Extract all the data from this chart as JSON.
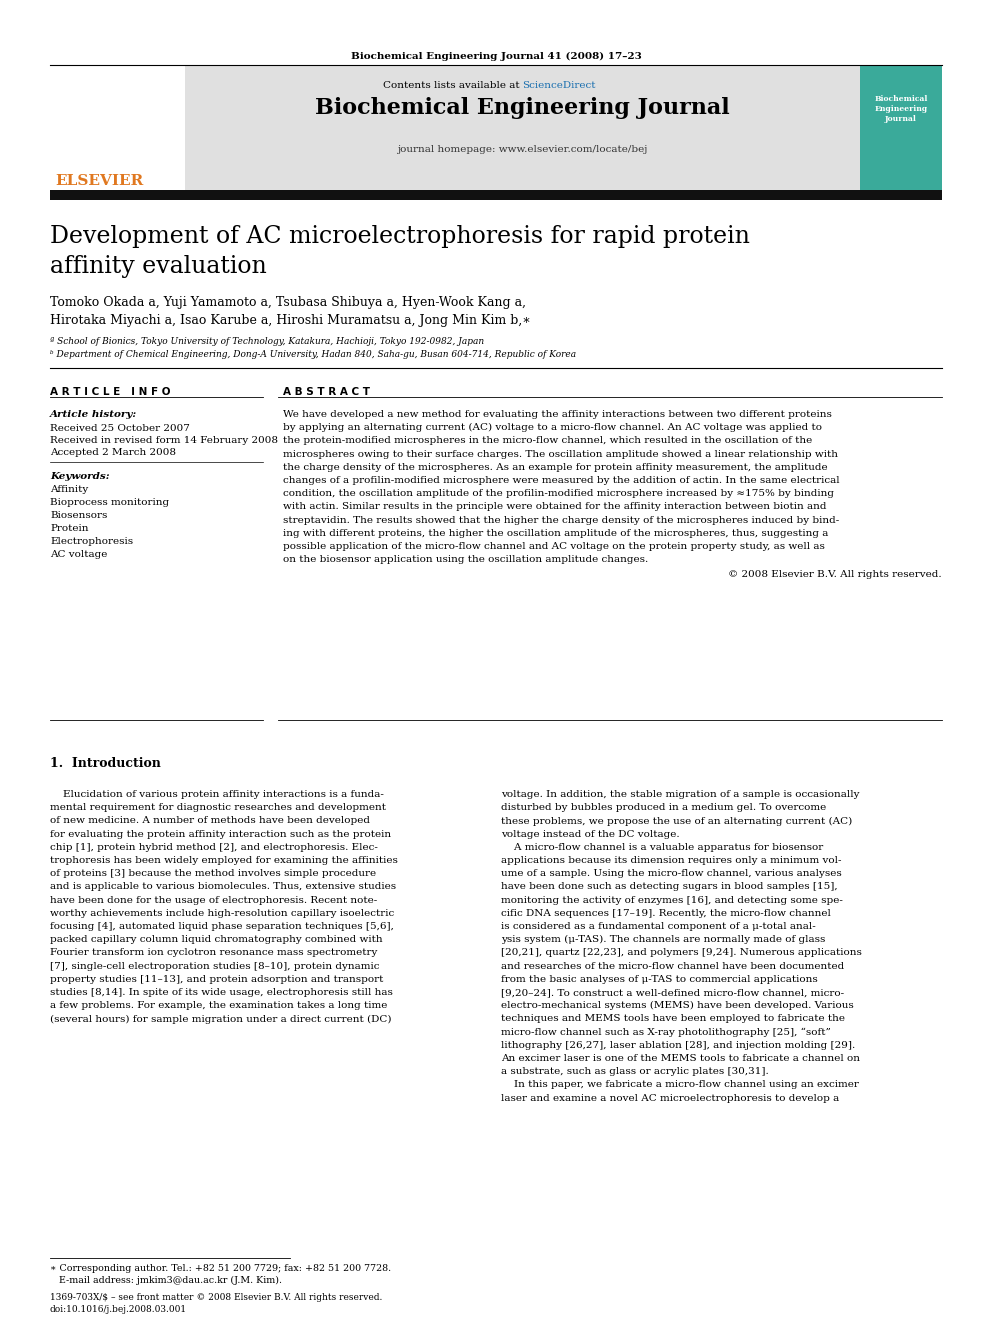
{
  "page_background": "#ffffff",
  "top_journal_ref": "Biochemical Engineering Journal 41 (2008) 17–23",
  "sciencedirect_color": "#1a6faf",
  "journal_title": "Biochemical Engineering Journal",
  "journal_homepage": "journal homepage: www.elsevier.com/locate/bej",
  "header_bg": "#e0e0e0",
  "elsevier_color": "#e07820",
  "article_title_line1": "Development of AC microelectrophoresis for rapid protein",
  "article_title_line2": "affinity evaluation",
  "authors_line1": "Tomoko Okada a, Yuji Yamamoto a, Tsubasa Shibuya a, Hyen-Wook Kang a,",
  "authors_line2": "Hirotaka Miyachi a, Isao Karube a, Hiroshi Muramatsu a, Jong Min Kim b,∗",
  "affil_a": "ª School of Bionics, Tokyo University of Technology, Katakura, Hachioji, Tokyo 192-0982, Japan",
  "affil_b": "ᵇ Department of Chemical Engineering, Dong-A University, Hadan 840, Saha-gu, Busan 604-714, Republic of Korea",
  "article_info_header": "A R T I C L E   I N F O",
  "abstract_header": "A B S T R A C T",
  "article_history_header": "Article history:",
  "received1": "Received 25 October 2007",
  "received2": "Received in revised form 14 February 2008",
  "accepted": "Accepted 2 March 2008",
  "keywords_header": "Keywords:",
  "keywords": [
    "Affinity",
    "Bioprocess monitoring",
    "Biosensors",
    "Protein",
    "Electrophoresis",
    "AC voltage"
  ],
  "abstract_lines": [
    "We have developed a new method for evaluating the affinity interactions between two different proteins",
    "by applying an alternating current (AC) voltage to a micro-flow channel. An AC voltage was applied to",
    "the protein-modified microspheres in the micro-flow channel, which resulted in the oscillation of the",
    "microspheres owing to their surface charges. The oscillation amplitude showed a linear relationship with",
    "the charge density of the microspheres. As an example for protein affinity measurement, the amplitude",
    "changes of a profilin-modified microsphere were measured by the addition of actin. In the same electrical",
    "condition, the oscillation amplitude of the profilin-modified microsphere increased by ≈175% by binding",
    "with actin. Similar results in the principle were obtained for the affinity interaction between biotin and",
    "streptavidin. The results showed that the higher the charge density of the microspheres induced by bind-",
    "ing with different proteins, the higher the oscillation amplitude of the microspheres, thus, suggesting a",
    "possible application of the micro-flow channel and AC voltage on the protein property study, as well as",
    "on the biosensor application using the oscillation amplitude changes."
  ],
  "copyright": "© 2008 Elsevier B.V. All rights reserved.",
  "intro_header": "1.  Introduction",
  "intro_col1_lines": [
    "    Elucidation of various protein affinity interactions is a funda-",
    "mental requirement for diagnostic researches and development",
    "of new medicine. A number of methods have been developed",
    "for evaluating the protein affinity interaction such as the protein",
    "chip [1], protein hybrid method [2], and electrophoresis. Elec-",
    "trophoresis has been widely employed for examining the affinities",
    "of proteins [3] because the method involves simple procedure",
    "and is applicable to various biomolecules. Thus, extensive studies",
    "have been done for the usage of electrophoresis. Recent note-",
    "worthy achievements include high-resolution capillary isoelectric",
    "focusing [4], automated liquid phase separation techniques [5,6],",
    "packed capillary column liquid chromatography combined with",
    "Fourier transform ion cyclotron resonance mass spectrometry",
    "[7], single-cell electroporation studies [8–10], protein dynamic",
    "property studies [11–13], and protein adsorption and transport",
    "studies [8,14]. In spite of its wide usage, electrophoresis still has",
    "a few problems. For example, the examination takes a long time",
    "(several hours) for sample migration under a direct current (DC)"
  ],
  "intro_col2_lines": [
    "voltage. In addition, the stable migration of a sample is occasionally",
    "disturbed by bubbles produced in a medium gel. To overcome",
    "these problems, we propose the use of an alternating current (AC)",
    "voltage instead of the DC voltage.",
    "    A micro-flow channel is a valuable apparatus for biosensor",
    "applications because its dimension requires only a minimum vol-",
    "ume of a sample. Using the micro-flow channel, various analyses",
    "have been done such as detecting sugars in blood samples [15],",
    "monitoring the activity of enzymes [16], and detecting some spe-",
    "cific DNA sequences [17–19]. Recently, the micro-flow channel",
    "is considered as a fundamental component of a μ-total anal-",
    "ysis system (μ-TAS). The channels are normally made of glass",
    "[20,21], quartz [22,23], and polymers [9,24]. Numerous applications",
    "and researches of the micro-flow channel have been documented",
    "from the basic analyses of μ-TAS to commercial applications",
    "[9,20–24]. To construct a well-defined micro-flow channel, micro-",
    "electro-mechanical systems (MEMS) have been developed. Various",
    "techniques and MEMS tools have been employed to fabricate the",
    "micro-flow channel such as X-ray photolithography [25], “soft”",
    "lithography [26,27], laser ablation [28], and injection molding [29].",
    "An excimer laser is one of the MEMS tools to fabricate a channel on",
    "a substrate, such as glass or acrylic plates [30,31].",
    "    In this paper, we fabricate a micro-flow channel using an excimer",
    "laser and examine a novel AC microelectrophoresis to develop a"
  ],
  "footnote_star": "∗ Corresponding author. Tel.: +82 51 200 7729; fax: +82 51 200 7728.",
  "footnote_email": "   E-mail address: jmkim3@dau.ac.kr (J.M. Kim).",
  "footer_left": "1369-703X/$ – see front matter © 2008 Elsevier B.V. All rights reserved.",
  "footer_doi": "doi:10.1016/j.bej.2008.03.001",
  "cover_title": "Biochemical\nEngineering\nJournal",
  "cover_color": "#3aaa9a"
}
